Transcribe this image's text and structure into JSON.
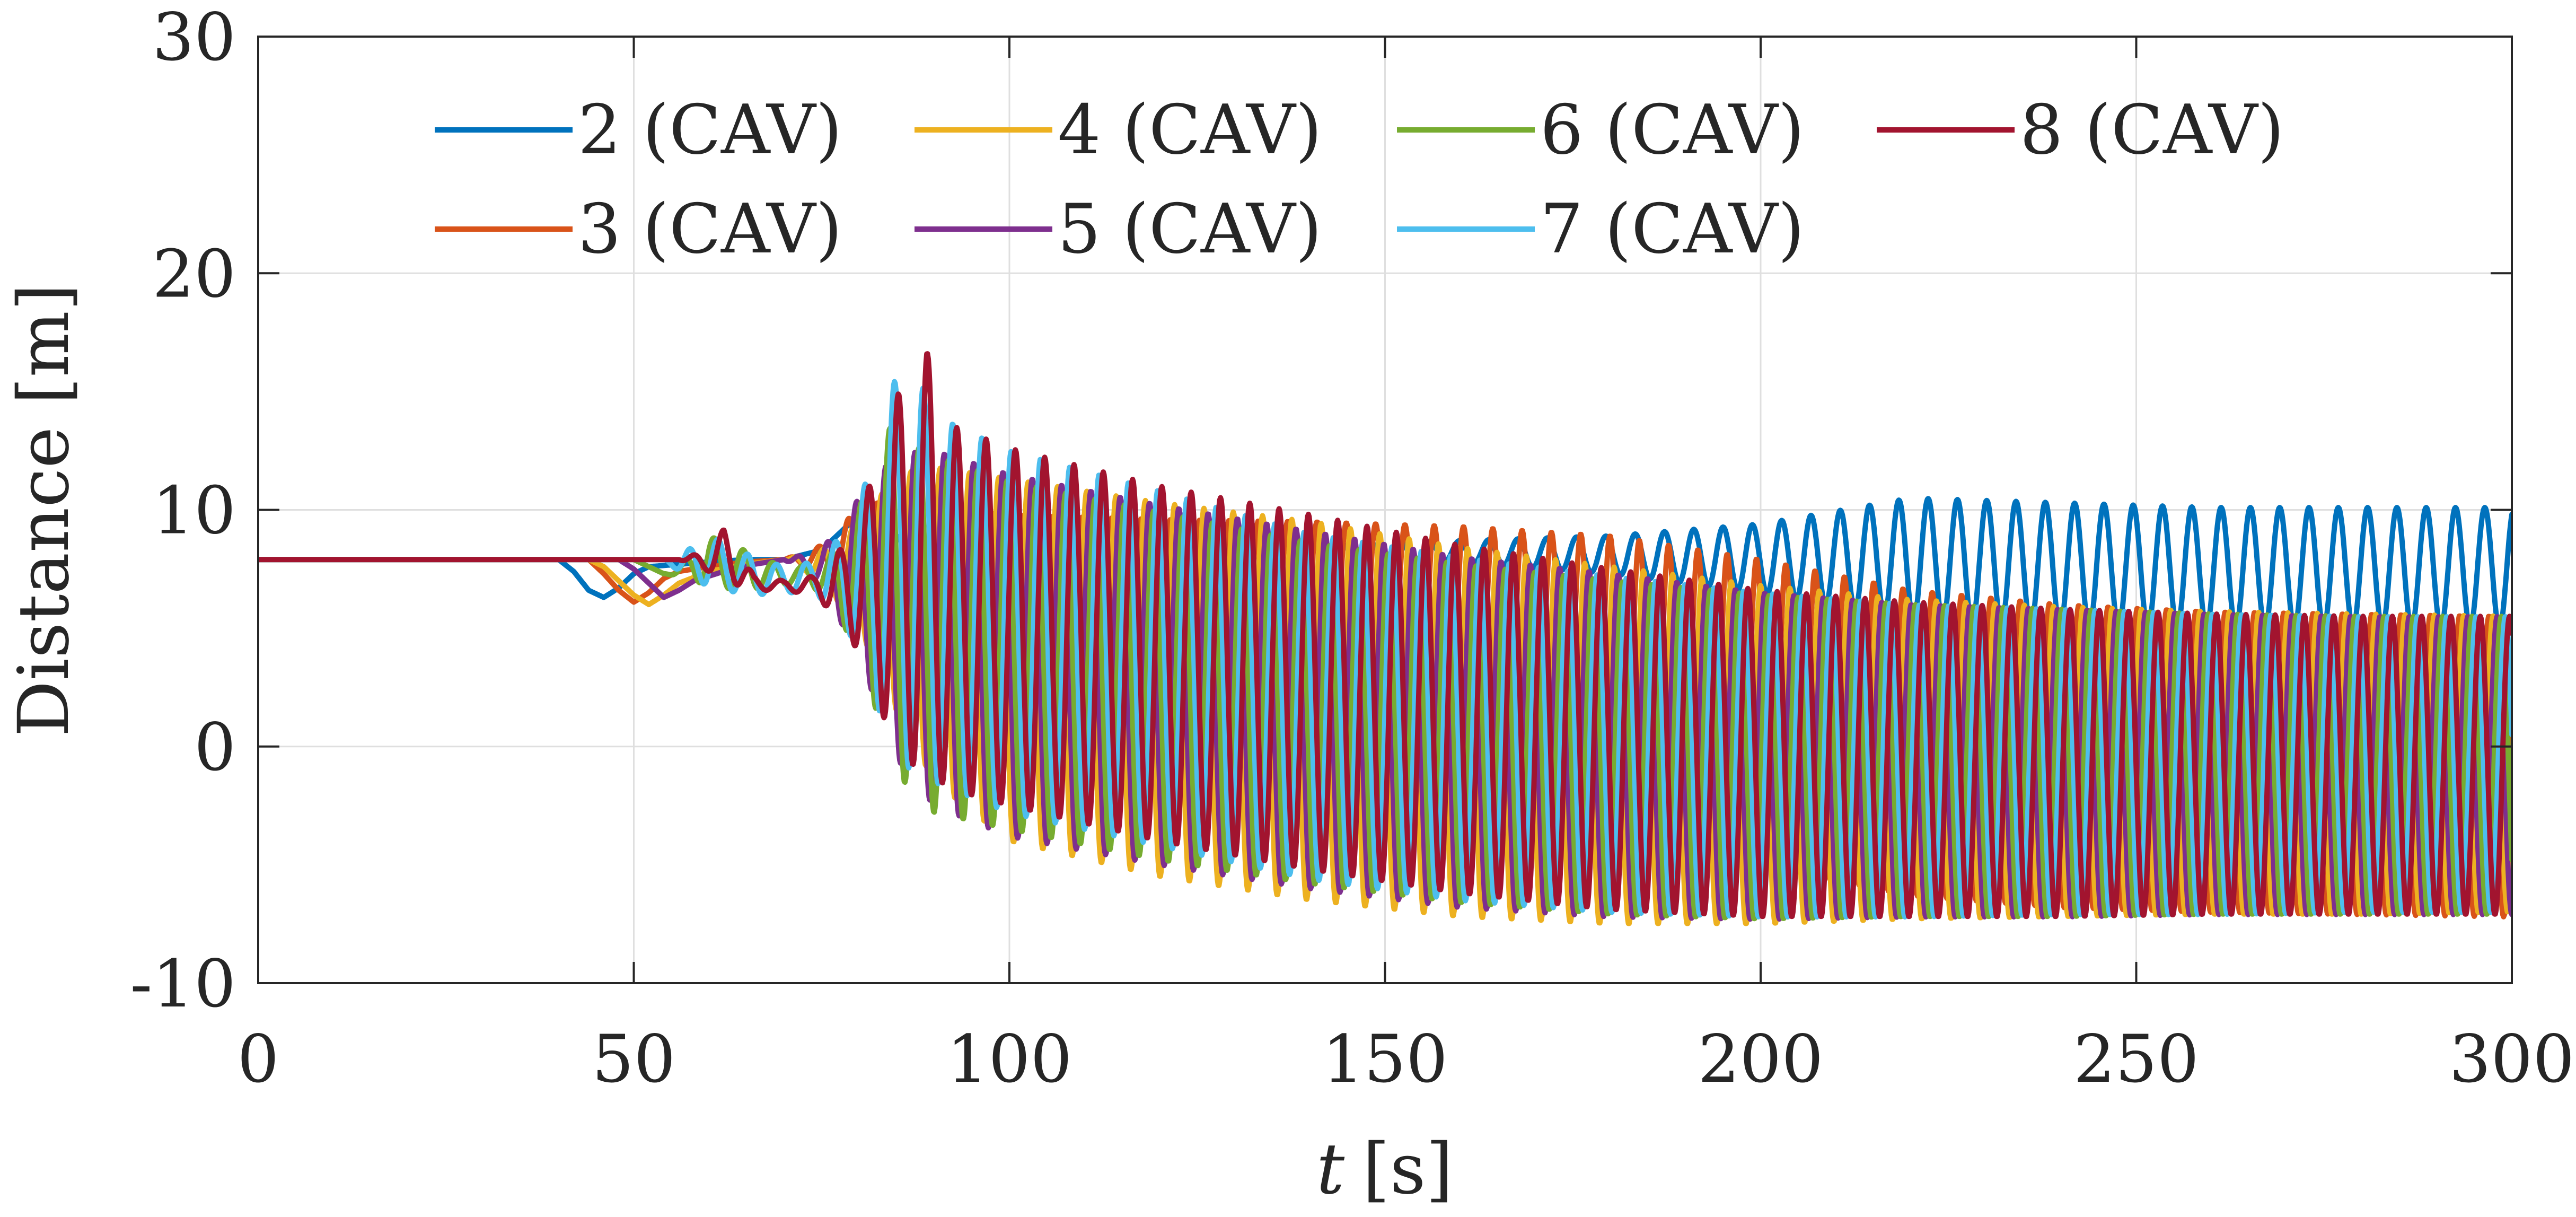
{
  "chart_data": {
    "type": "line",
    "title": "",
    "xlabel_var": "t",
    "xlabel_unit": "[s]",
    "ylabel": "Distance [m]",
    "xlim": [
      0,
      300
    ],
    "ylim": [
      -10,
      30
    ],
    "xticks": [
      0,
      50,
      100,
      150,
      200,
      250,
      300
    ],
    "yticks": [
      -10,
      0,
      10,
      20,
      30
    ],
    "xtick_labels": [
      "0",
      "50",
      "100",
      "150",
      "200",
      "250",
      "300"
    ],
    "ytick_labels": [
      "-10",
      "0",
      "10",
      "20",
      "30"
    ],
    "grid": true,
    "legend_position": "top",
    "series": [
      {
        "name": "2 (CAV)",
        "color": "#0072BD",
        "x": [
          0,
          40,
          42,
          44,
          46,
          48,
          50,
          52,
          56,
          60,
          65,
          70,
          75,
          78,
          80,
          85,
          90,
          100,
          120,
          140,
          160,
          180,
          200,
          220,
          240,
          260,
          280,
          300
        ],
        "peaks": [
          7.9,
          7.9,
          7.4,
          6.6,
          6.3,
          6.7,
          7.3,
          7.6,
          7.7,
          7.8,
          7.9,
          7.9,
          8.3,
          9.2,
          9.8,
          9.0,
          8.6,
          8.4,
          8.3,
          8.5,
          8.7,
          8.9,
          9.4,
          10.5,
          10.3,
          10.1,
          10.1,
          10.1
        ],
        "troughs": [
          7.9,
          7.9,
          7.4,
          6.6,
          6.3,
          6.7,
          7.3,
          7.6,
          7.7,
          7.8,
          7.9,
          7.9,
          8.3,
          9.2,
          9.8,
          8.2,
          8.0,
          7.9,
          7.9,
          7.9,
          7.8,
          7.3,
          6.5,
          5.3,
          5.0,
          5.0,
          5.0,
          5.0
        ]
      },
      {
        "name": "3 (CAV)",
        "color": "#D95319",
        "x": [
          0,
          42,
          44,
          46,
          48,
          50,
          52,
          54,
          56,
          60,
          65,
          70,
          75,
          78,
          80,
          85,
          90,
          100,
          120,
          140,
          160,
          180,
          200,
          220,
          240,
          260,
          280,
          300
        ],
        "peaks": [
          7.9,
          7.9,
          7.9,
          7.3,
          6.6,
          6.1,
          6.5,
          7.1,
          7.4,
          7.6,
          7.8,
          7.9,
          8.5,
          9.4,
          10.2,
          10.4,
          10.1,
          9.8,
          9.6,
          9.5,
          9.3,
          8.9,
          7.9,
          6.6,
          6.0,
          5.7,
          5.6,
          5.5
        ],
        "troughs": [
          7.9,
          7.9,
          7.9,
          7.3,
          6.6,
          6.1,
          6.5,
          7.1,
          7.4,
          7.6,
          7.8,
          7.9,
          7.4,
          6.9,
          5.8,
          3.0,
          2.2,
          2.0,
          2.2,
          1.5,
          0.0,
          -2.5,
          -5.0,
          -6.3,
          -6.8,
          -7.0,
          -7.1,
          -7.2
        ]
      },
      {
        "name": "4 (CAV)",
        "color": "#EDB120",
        "x": [
          0,
          44,
          46,
          48,
          50,
          52,
          54,
          56,
          60,
          65,
          70,
          75,
          80,
          85,
          90,
          100,
          120,
          140,
          160,
          180,
          200,
          220,
          240,
          260,
          280,
          300
        ],
        "peaks": [
          7.9,
          7.9,
          7.6,
          7.0,
          6.4,
          6.0,
          6.4,
          6.9,
          7.4,
          7.7,
          7.9,
          8.3,
          9.4,
          11.5,
          11.8,
          11.3,
          10.3,
          9.5,
          8.4,
          7.6,
          6.8,
          6.2,
          5.9,
          5.7,
          5.6,
          5.5
        ],
        "troughs": [
          7.9,
          7.9,
          7.6,
          7.0,
          6.4,
          6.0,
          6.4,
          6.9,
          7.4,
          7.7,
          7.9,
          7.0,
          5.0,
          1.5,
          -1.5,
          -4.0,
          -5.5,
          -6.5,
          -7.2,
          -7.5,
          -7.5,
          -7.3,
          -7.2,
          -7.1,
          -7.1,
          -7.0
        ]
      },
      {
        "name": "5 (CAV)",
        "color": "#7E2F8E",
        "x": [
          0,
          46,
          48,
          50,
          52,
          54,
          56,
          58,
          62,
          66,
          70,
          75,
          80,
          85,
          90,
          100,
          120,
          140,
          160,
          180,
          200,
          220,
          240,
          260,
          280,
          300
        ],
        "peaks": [
          7.9,
          7.9,
          7.9,
          7.5,
          6.9,
          6.3,
          6.6,
          7.0,
          7.4,
          7.7,
          7.9,
          8.3,
          10.5,
          12.4,
          12.5,
          11.5,
          10.2,
          9.1,
          8.0,
          7.3,
          6.5,
          6.0,
          5.8,
          5.6,
          5.5,
          5.5
        ],
        "troughs": [
          7.9,
          7.9,
          7.9,
          7.5,
          6.9,
          6.3,
          6.6,
          7.0,
          7.4,
          7.7,
          7.9,
          6.8,
          3.8,
          -0.5,
          -2.5,
          -3.8,
          -5.0,
          -6.0,
          -6.8,
          -7.2,
          -7.3,
          -7.2,
          -7.2,
          -7.1,
          -7.1,
          -7.1
        ]
      },
      {
        "name": "6 (CAV)",
        "color": "#77AC30",
        "x": [
          0,
          48,
          50,
          52,
          54,
          56,
          58,
          60,
          64,
          68,
          72,
          76,
          80,
          83,
          86,
          90,
          100,
          120,
          140,
          160,
          180,
          200,
          220,
          240,
          260,
          280,
          300
        ],
        "peaks": [
          7.9,
          7.9,
          7.9,
          7.6,
          7.3,
          7.6,
          8.3,
          8.9,
          8.4,
          7.8,
          7.6,
          8.0,
          10.0,
          13.7,
          13.0,
          12.3,
          11.2,
          9.9,
          8.6,
          7.7,
          7.0,
          6.4,
          6.0,
          5.8,
          5.6,
          5.5,
          5.5
        ],
        "troughs": [
          7.9,
          7.9,
          7.9,
          7.6,
          7.3,
          7.2,
          7.0,
          6.8,
          6.6,
          6.7,
          6.9,
          6.4,
          3.8,
          0.8,
          -1.5,
          -2.8,
          -3.5,
          -4.8,
          -5.8,
          -6.6,
          -7.1,
          -7.3,
          -7.2,
          -7.2,
          -7.1,
          -7.1,
          -7.1
        ]
      },
      {
        "name": "7 (CAV)",
        "color": "#4DBEEE",
        "x": [
          0,
          50,
          52,
          54,
          56,
          58,
          60,
          62,
          66,
          70,
          74,
          78,
          82,
          86,
          90,
          100,
          120,
          140,
          160,
          180,
          200,
          220,
          240,
          260,
          280,
          300
        ],
        "peaks": [
          7.9,
          7.9,
          7.9,
          7.9,
          8.0,
          8.5,
          9.0,
          8.6,
          8.0,
          7.6,
          7.8,
          9.0,
          12.0,
          17.1,
          14.0,
          12.5,
          10.8,
          9.0,
          8.0,
          7.2,
          6.5,
          6.0,
          5.8,
          5.6,
          5.5,
          5.5
        ],
        "troughs": [
          7.9,
          7.9,
          7.9,
          7.9,
          7.4,
          7.0,
          6.8,
          6.6,
          6.4,
          6.5,
          6.5,
          5.4,
          2.0,
          -0.8,
          -1.5,
          -2.8,
          -4.2,
          -5.6,
          -6.5,
          -7.0,
          -7.2,
          -7.2,
          -7.1,
          -7.1,
          -7.0,
          -7.0
        ]
      },
      {
        "name": "8 (CAV)",
        "color": "#A2142F",
        "x": [
          0,
          52,
          56,
          60,
          62,
          64,
          66,
          70,
          74,
          78,
          82,
          85,
          89,
          92,
          100,
          120,
          140,
          160,
          180,
          200,
          220,
          240,
          260,
          280,
          300
        ],
        "peaks": [
          7.9,
          7.9,
          7.9,
          8.3,
          9.2,
          8.3,
          7.2,
          7.0,
          7.2,
          8.5,
          11.5,
          14.8,
          16.7,
          13.6,
          12.6,
          11.0,
          9.8,
          8.5,
          7.5,
          6.6,
          6.1,
          5.8,
          5.6,
          5.5,
          5.5
        ],
        "troughs": [
          7.9,
          7.9,
          7.9,
          7.4,
          7.0,
          6.8,
          6.6,
          6.6,
          6.4,
          5.2,
          2.5,
          -0.5,
          -1.0,
          -1.8,
          -2.5,
          -4.0,
          -5.2,
          -6.2,
          -6.9,
          -7.2,
          -7.2,
          -7.2,
          -7.1,
          -7.1,
          -7.1
        ]
      }
    ],
    "oscillation_period_s": 3.9,
    "series_phase_offsets_s": [
      0.0,
      0.55,
      1.1,
      1.65,
      2.2,
      2.75,
      3.3
    ]
  }
}
